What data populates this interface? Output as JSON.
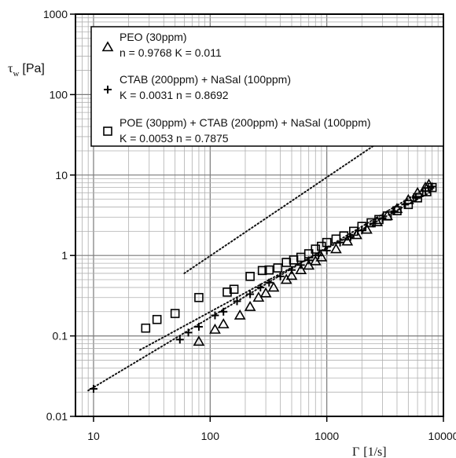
{
  "chart_data": {
    "type": "scatter",
    "xscale": "log",
    "yscale": "log",
    "xlim": [
      7,
      10000
    ],
    "ylim": [
      0.01,
      1000
    ],
    "grid": true,
    "legend_position": "top-right",
    "xlabel_main": "Γ",
    "xlabel_unit": "[1/s]",
    "ylabel_main": "τ",
    "ylabel_sub": "w",
    "ylabel_unit": "[Pa]",
    "x_ticks": [
      {
        "value": 10,
        "label": "10"
      },
      {
        "value": 100,
        "label": "100"
      },
      {
        "value": 1000,
        "label": "1000"
      },
      {
        "value": 10000,
        "label": "10000"
      }
    ],
    "y_ticks": [
      {
        "value": 0.01,
        "label": "0.01"
      },
      {
        "value": 0.1,
        "label": "0.1"
      },
      {
        "value": 1,
        "label": "1"
      },
      {
        "value": 10,
        "label": "10"
      },
      {
        "value": 100,
        "label": "100"
      },
      {
        "value": 1000,
        "label": "1000"
      }
    ],
    "series": [
      {
        "name": "PEO (30ppm)",
        "fit_text": "n = 0.9768 K = 0.011",
        "marker": "triangle",
        "fit": {
          "K": 0.011,
          "n": 0.9768,
          "xmin": 60,
          "xmax": 8000
        },
        "points": [
          [
            80,
            0.085
          ],
          [
            110,
            0.12
          ],
          [
            130,
            0.14
          ],
          [
            180,
            0.18
          ],
          [
            220,
            0.23
          ],
          [
            260,
            0.3
          ],
          [
            300,
            0.34
          ],
          [
            350,
            0.4
          ],
          [
            450,
            0.5
          ],
          [
            500,
            0.56
          ],
          [
            600,
            0.66
          ],
          [
            700,
            0.75
          ],
          [
            800,
            0.85
          ],
          [
            900,
            0.95
          ],
          [
            1200,
            1.2
          ],
          [
            1500,
            1.5
          ],
          [
            1800,
            1.8
          ],
          [
            2200,
            2.1
          ],
          [
            2700,
            2.6
          ],
          [
            3300,
            3.1
          ],
          [
            4000,
            3.8
          ],
          [
            5000,
            4.9
          ],
          [
            6000,
            6
          ],
          [
            7000,
            7
          ],
          [
            7500,
            7.6
          ]
        ]
      },
      {
        "name": "CTAB (200ppm) + NaSal (100ppm)",
        "fit_text": "K = 0.0031 n = 0.8692",
        "marker": "plus",
        "fit": {
          "K": 0.0031,
          "n": 0.8692,
          "xmin": 9,
          "xmax": 8000
        },
        "points": [
          [
            10,
            0.022
          ],
          [
            55,
            0.09
          ],
          [
            65,
            0.11
          ],
          [
            80,
            0.13
          ],
          [
            110,
            0.18
          ],
          [
            130,
            0.2
          ],
          [
            170,
            0.27
          ],
          [
            220,
            0.33
          ],
          [
            270,
            0.4
          ],
          [
            320,
            0.46
          ],
          [
            400,
            0.55
          ],
          [
            500,
            0.66
          ],
          [
            600,
            0.76
          ],
          [
            700,
            0.87
          ],
          [
            850,
            1.0
          ],
          [
            1000,
            1.15
          ],
          [
            1300,
            1.45
          ],
          [
            1600,
            1.7
          ],
          [
            2000,
            2.05
          ],
          [
            2500,
            2.5
          ],
          [
            3000,
            2.9
          ],
          [
            3800,
            3.55
          ],
          [
            4700,
            4.3
          ],
          [
            5800,
            5.2
          ],
          [
            7000,
            6.3
          ],
          [
            8000,
            7.2
          ]
        ]
      },
      {
        "name": "POE (30ppm) + CTAB (200ppm) + NaSal (100ppm)",
        "fit_text": "K = 0.0053 n = 0.7875",
        "marker": "square",
        "fit": {
          "K": 0.0053,
          "n": 0.7875,
          "xmin": 25,
          "xmax": 8000
        },
        "points": [
          [
            28,
            0.125
          ],
          [
            35,
            0.16
          ],
          [
            50,
            0.19
          ],
          [
            80,
            0.3
          ],
          [
            140,
            0.35
          ],
          [
            160,
            0.38
          ],
          [
            220,
            0.55
          ],
          [
            280,
            0.65
          ],
          [
            320,
            0.66
          ],
          [
            380,
            0.7
          ],
          [
            450,
            0.82
          ],
          [
            520,
            0.88
          ],
          [
            600,
            0.95
          ],
          [
            700,
            1.05
          ],
          [
            800,
            1.2
          ],
          [
            900,
            1.3
          ],
          [
            1000,
            1.45
          ],
          [
            1200,
            1.6
          ],
          [
            1400,
            1.75
          ],
          [
            1700,
            2.0
          ],
          [
            2000,
            2.3
          ],
          [
            2400,
            2.55
          ],
          [
            2800,
            2.8
          ],
          [
            3300,
            3.1
          ],
          [
            4000,
            3.6
          ],
          [
            5000,
            4.3
          ],
          [
            6000,
            5.2
          ],
          [
            7200,
            6.2
          ],
          [
            8000,
            7.0
          ]
        ]
      }
    ]
  }
}
